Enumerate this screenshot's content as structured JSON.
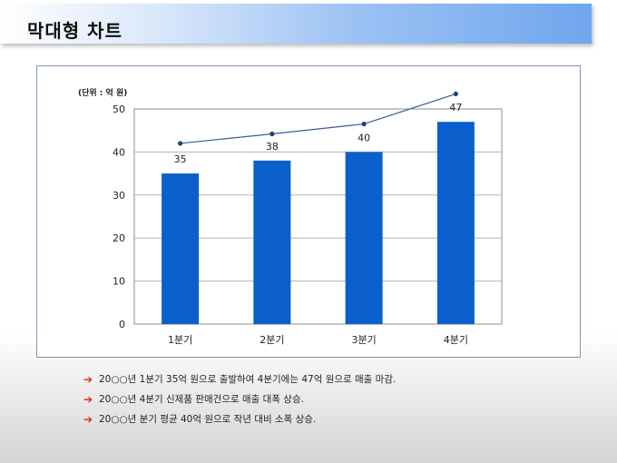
{
  "header": {
    "title": "막대형 차트"
  },
  "chart_data": {
    "type": "bar",
    "unit_label": "(단위 : 억 원)",
    "categories": [
      "1분기",
      "2분기",
      "3분기",
      "4분기"
    ],
    "values": [
      35,
      38,
      40,
      47
    ],
    "line_values": [
      42,
      44.2,
      46.5,
      53.5
    ],
    "ylim": [
      0,
      50
    ],
    "yticks": [
      0,
      10,
      20,
      30,
      40,
      50
    ],
    "grid": true,
    "colors": {
      "bar": "#0a5fcc",
      "line": "#3a5d94",
      "grid": "#b5b5b5"
    }
  },
  "notes": [
    {
      "text": "20○○년 1분기 35억 원으로 출발하여 4분기에는 47억 원으로 매출 마감."
    },
    {
      "text": "20○○년 4분기 신제품 판매건으로 매출 대폭 상승."
    },
    {
      "text": "20○○년 분기 평균 40억 원으로 작년 대비 소폭 상승."
    }
  ]
}
